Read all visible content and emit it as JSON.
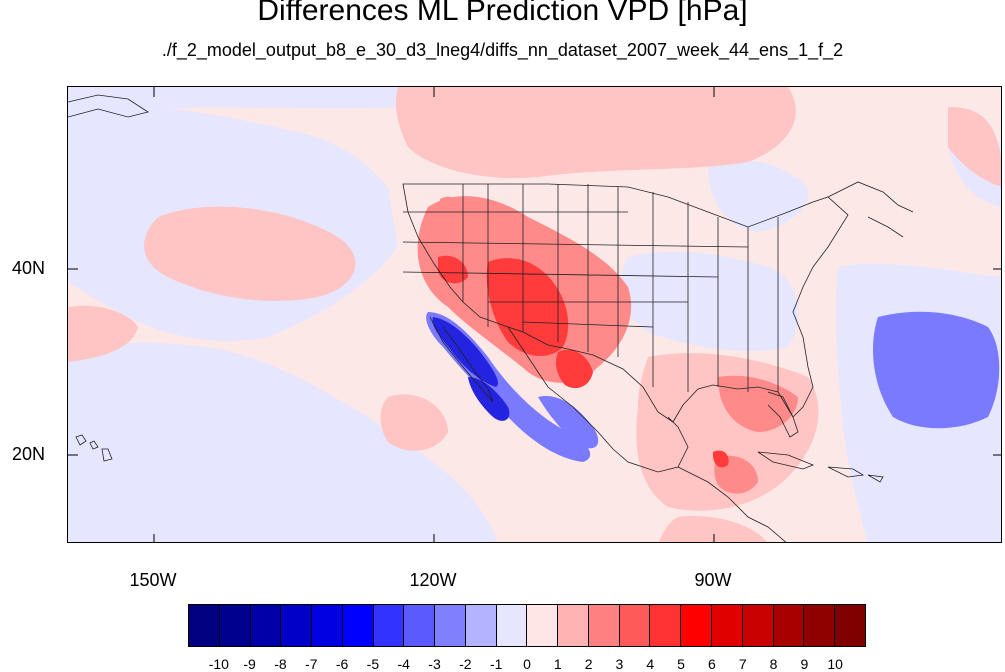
{
  "title": "Differences ML Prediction VPD [hPa]",
  "subtitle": "./f_2_model_output_b8_e_30_d3_lneg4/diffs_nn_dataset_2007_week_44_ens_1_f_2",
  "lat_labels": [
    "40N",
    "20N"
  ],
  "lon_labels": [
    "150W",
    "120W",
    "90W"
  ],
  "colorbar": {
    "labels": [
      "-10",
      "-9",
      "-8",
      "-7",
      "-6",
      "-5",
      "-4",
      "-3",
      "-2",
      "-1",
      "0",
      "1",
      "2",
      "3",
      "4",
      "5",
      "6",
      "7",
      "8",
      "9",
      "10"
    ],
    "colors": [
      "#000080",
      "#00008f",
      "#0000a8",
      "#0000c8",
      "#0000e0",
      "#0000ff",
      "#3333ff",
      "#5a5aff",
      "#8080ff",
      "#b3b3ff",
      "#e6e6ff",
      "#ffe6e6",
      "#ffb3b3",
      "#ff8080",
      "#ff5a5a",
      "#ff3333",
      "#ff0000",
      "#e00000",
      "#c80000",
      "#a80000",
      "#8f0000",
      "#800000"
    ]
  }
}
